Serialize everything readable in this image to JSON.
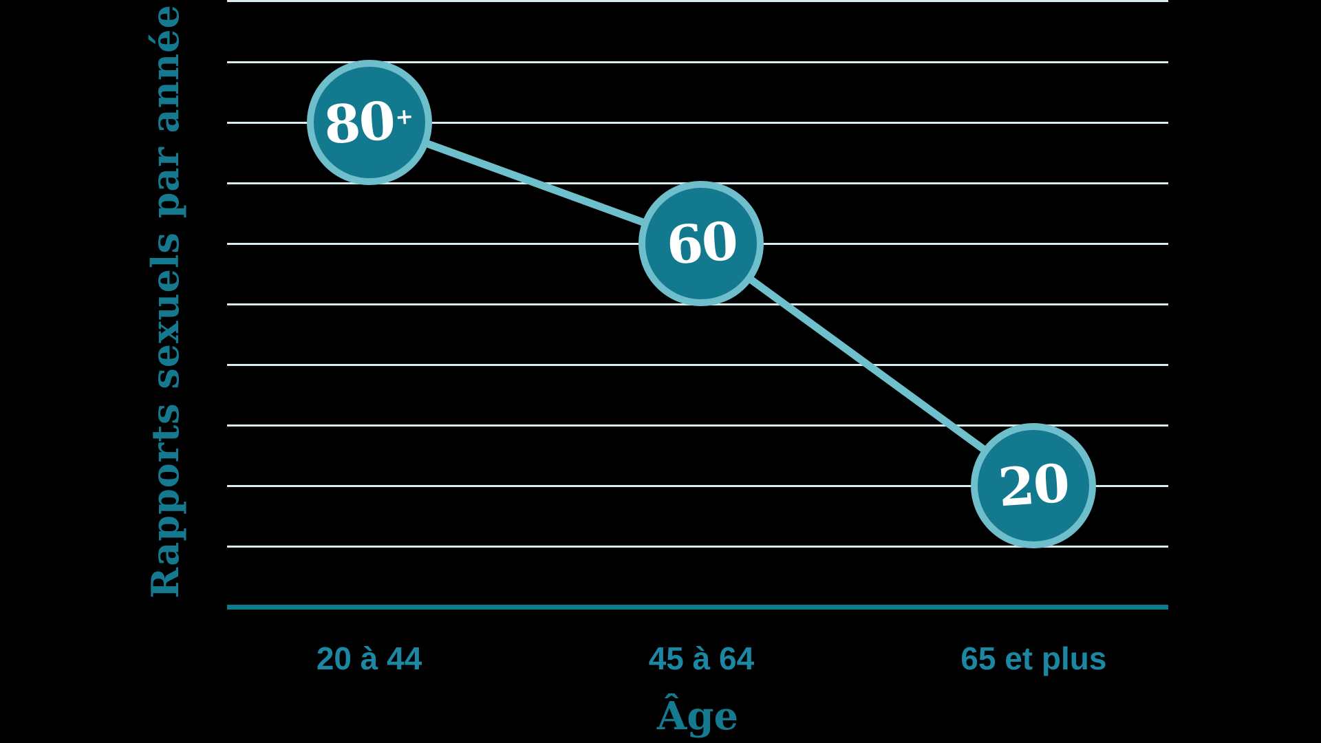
{
  "chart_data": {
    "type": "line",
    "title": "",
    "categories": [
      "20 à 44",
      "45 à 64",
      "65 et plus"
    ],
    "series": [
      {
        "name": "Rapports sexuels par année",
        "values": [
          80,
          60,
          20
        ]
      }
    ],
    "point_labels": [
      "80+",
      "60",
      "20"
    ],
    "xlabel": "Âge",
    "ylabel": "Rapports sexuels par année",
    "ylim": [
      0,
      100
    ],
    "gridline_step": 10,
    "grid": true,
    "legend_position": "none"
  },
  "colors": {
    "background": "#000000",
    "circle_fill": "#12798F",
    "circle_ring": "#6FBECB",
    "trend_line": "#6FC0CD",
    "gridline": "#D8EDF0",
    "axis_line": "#0E7A90",
    "title_text": "#15798F",
    "tick_text": "#1C87A3",
    "point_text": "#FFFFFF"
  }
}
